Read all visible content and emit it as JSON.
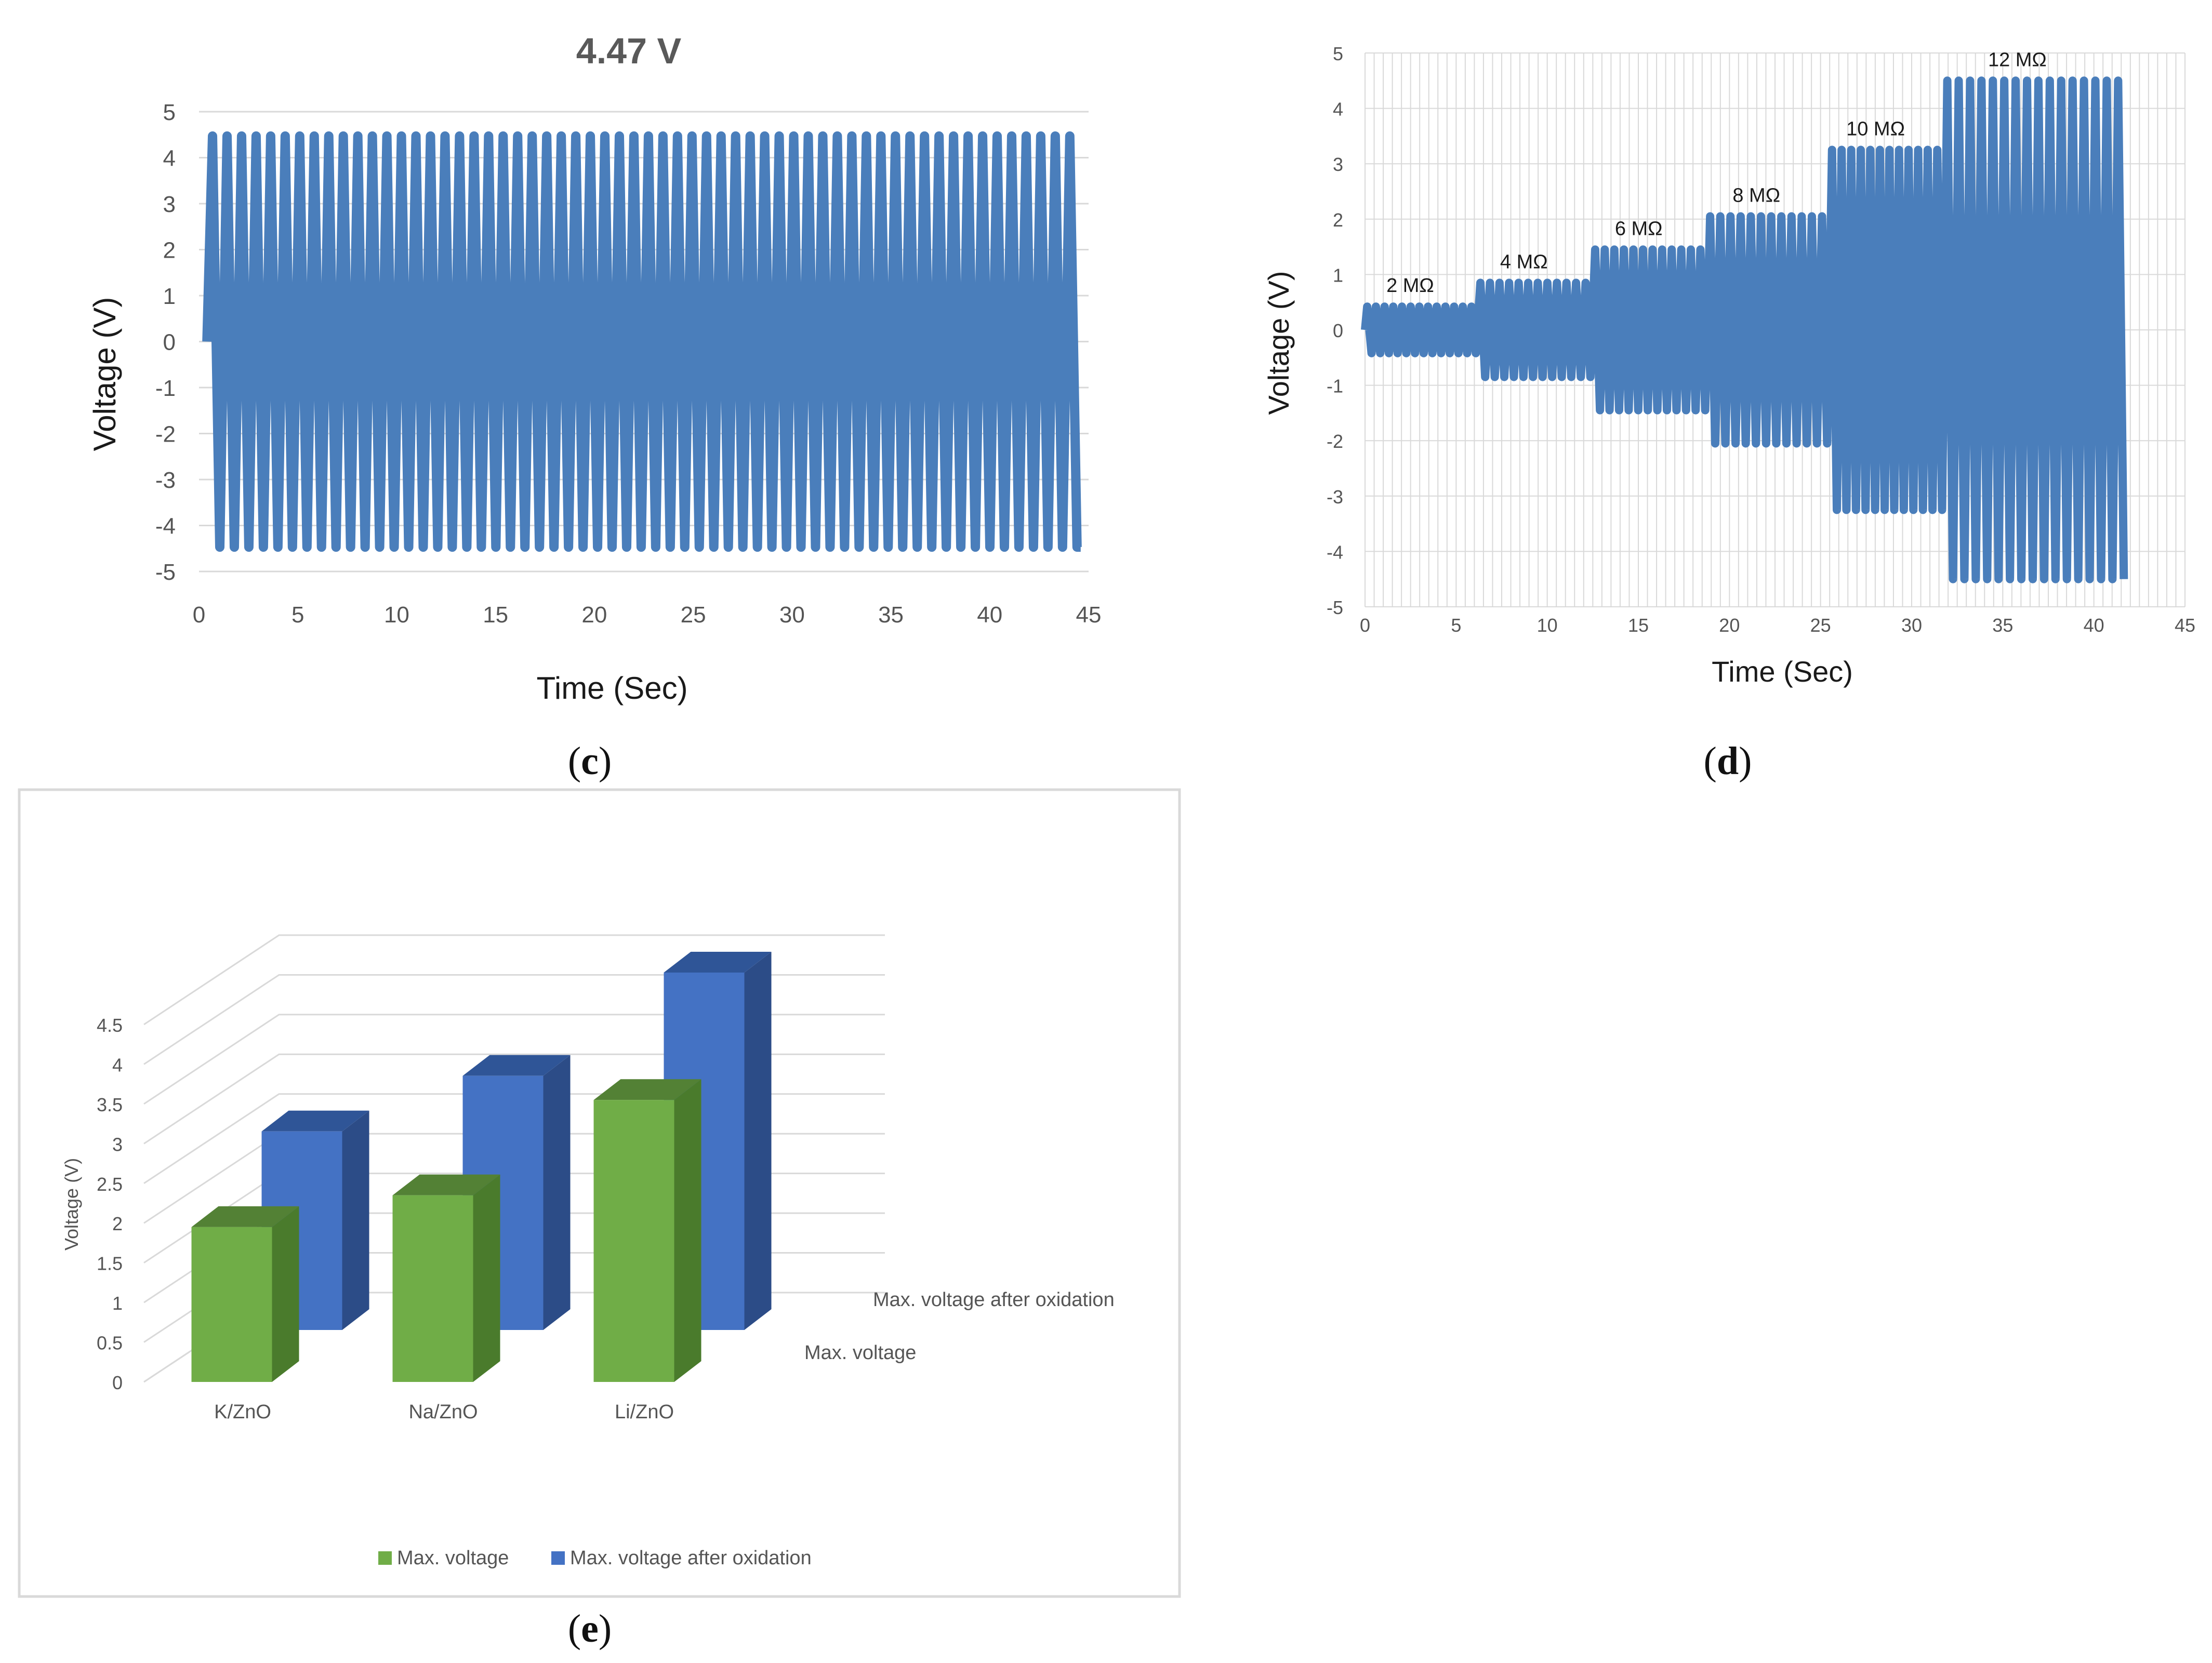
{
  "colors": {
    "signal": "#4a7ebb",
    "green_front": "#70ad47",
    "green_side": "#4a7b2c",
    "green_top": "#538135",
    "blue_front": "#4472c4",
    "blue_side": "#2c4c87",
    "blue_top": "#2f5597",
    "grid": "#d9d9d9",
    "border": "#d9d9d9"
  },
  "chart_data": [
    {
      "id": "c",
      "type": "line",
      "panel_label": "c",
      "title": "4.47 V",
      "xlabel": "Time (Sec)",
      "ylabel": "Voltage (V)",
      "xlim": [
        0,
        45
      ],
      "ylim": [
        -5,
        5
      ],
      "xticks": [
        0,
        5,
        10,
        15,
        20,
        25,
        30,
        35,
        40,
        45
      ],
      "yticks": [
        5,
        4,
        3,
        2,
        1,
        0,
        -1,
        -2,
        -3,
        -4,
        -5
      ],
      "grid": "horizontal",
      "series": [
        {
          "name": "Voltage",
          "amplitude": 4.47,
          "t_start": 0.5,
          "t_end": 44.6,
          "cycles": 60
        }
      ]
    },
    {
      "id": "d",
      "type": "line",
      "panel_label": "d",
      "title": "",
      "xlabel": "Time (Sec)",
      "ylabel": "Voltage (V)",
      "xlim": [
        0,
        45
      ],
      "ylim": [
        -5,
        5
      ],
      "xticks": [
        0,
        5,
        10,
        15,
        20,
        25,
        30,
        35,
        40,
        45
      ],
      "yticks": [
        5,
        4,
        3,
        2,
        1,
        0,
        -1,
        -2,
        -3,
        -4,
        -5
      ],
      "grid": "both",
      "segments": [
        {
          "label": "2 MΩ",
          "t_start": 0,
          "t_end": 6.2,
          "amplitude": 0.42,
          "cycles": 13
        },
        {
          "label": "4 MΩ",
          "t_start": 6.2,
          "t_end": 12.5,
          "amplitude": 0.85,
          "cycles": 12
        },
        {
          "label": "6 MΩ",
          "t_start": 12.5,
          "t_end": 18.8,
          "amplitude": 1.45,
          "cycles": 12
        },
        {
          "label": "8 MΩ",
          "t_start": 18.8,
          "t_end": 25.5,
          "amplitude": 2.05,
          "cycles": 12
        },
        {
          "label": "10 MΩ",
          "t_start": 25.5,
          "t_end": 31.8,
          "amplitude": 3.25,
          "cycles": 12
        },
        {
          "label": "12 MΩ",
          "t_start": 31.8,
          "t_end": 41.8,
          "amplitude": 4.5,
          "cycles": 16
        }
      ]
    },
    {
      "id": "e",
      "type": "bar",
      "panel_label": "e",
      "title": "",
      "ylabel": "Voltage (V)",
      "ylim": [
        0,
        4.5
      ],
      "yticks": [
        0,
        0.5,
        1,
        1.5,
        2,
        2.5,
        3,
        3.5,
        4,
        4.5
      ],
      "categories": [
        "K/ZnO",
        "Na/ZnO",
        "Li/ZnO"
      ],
      "series": [
        {
          "name": "Max. voltage",
          "values": [
            1.95,
            2.35,
            3.55
          ]
        },
        {
          "name": "Max. voltage after oxidation",
          "values": [
            2.5,
            3.2,
            4.5
          ]
        }
      ],
      "depth_labels": [
        "Max. voltage after oxidation",
        "Max. voltage"
      ],
      "legend": "bottom"
    }
  ]
}
